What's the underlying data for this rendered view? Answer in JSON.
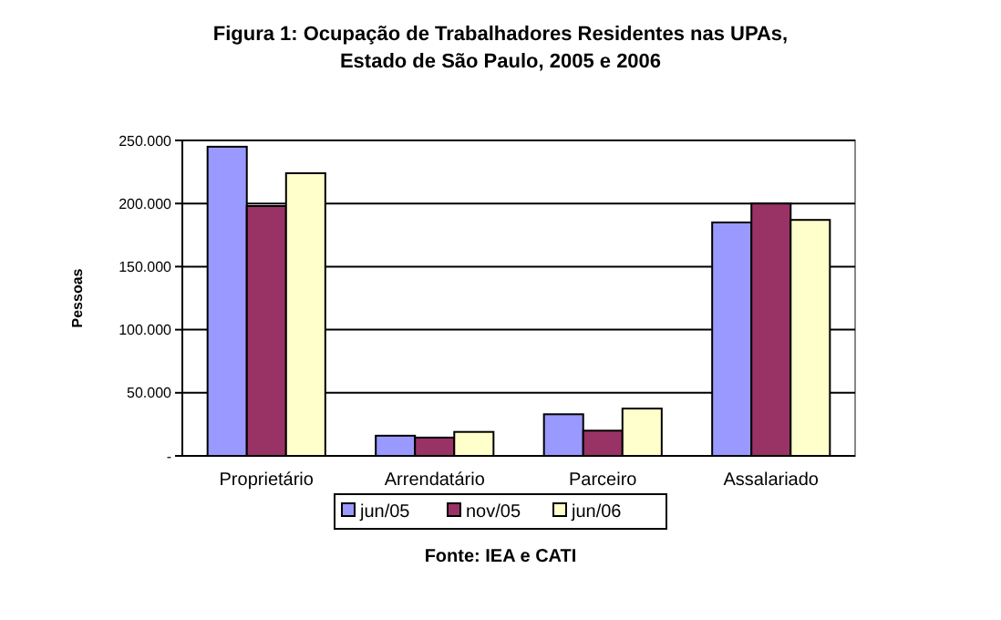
{
  "chart_data": {
    "type": "bar",
    "title": "Figura 1: Ocupação de Trabalhadores Residentes nas UPAs, Estado de São Paulo, 2005 e 2006",
    "ylabel": "Pessoas",
    "annotations": [
      "Fonte: IEA e CATI"
    ],
    "categories": [
      "Proprietário",
      "Arrendatário",
      "Parceiro",
      "Assalariado"
    ],
    "series": [
      {
        "name": "jun/05",
        "color": "#9999ff",
        "values": [
          245000,
          16000,
          33000,
          185000
        ]
      },
      {
        "name": "nov/05",
        "color": "#993366",
        "values": [
          198000,
          14500,
          20000,
          200000
        ]
      },
      {
        "name": "jun/06",
        "color": "#ffffcc",
        "values": [
          224000,
          19000,
          37500,
          187000
        ]
      }
    ],
    "ylim": [
      0,
      250000
    ],
    "yticks": [
      {
        "value": 0,
        "label": "-"
      },
      {
        "value": 50000,
        "label": "50.000"
      },
      {
        "value": 100000,
        "label": "100.000"
      },
      {
        "value": 150000,
        "label": "150.000"
      },
      {
        "value": 200000,
        "label": "200.000"
      },
      {
        "value": 250000,
        "label": "250.000"
      }
    ],
    "grid": "y",
    "legend": "bottom"
  }
}
